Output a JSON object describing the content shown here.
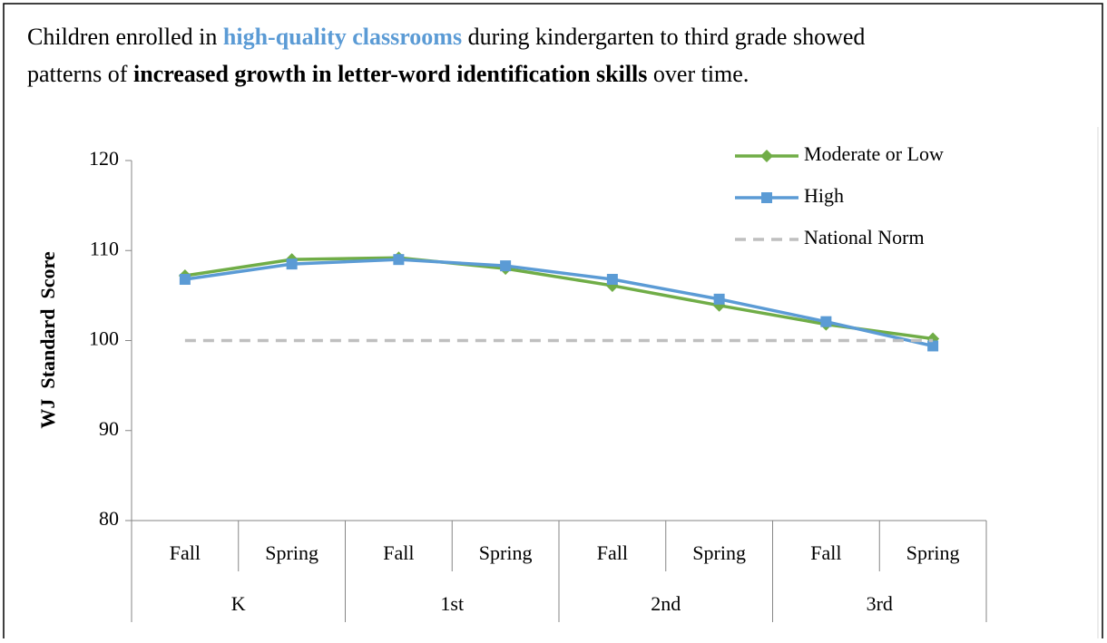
{
  "chart_data": {
    "type": "line",
    "title_lines": [
      [
        {
          "text": "Children enrolled in ",
          "style": "normal"
        },
        {
          "text": "high-quality classrooms",
          "style": "highlight"
        },
        {
          "text": " during kindergarten to third grade showed",
          "style": "normal"
        }
      ],
      [
        {
          "text": "patterns of ",
          "style": "normal"
        },
        {
          "text": "increased growth in letter-word identification skills",
          "style": "bold"
        },
        {
          "text": " over time.",
          "style": "normal"
        }
      ]
    ],
    "highlight_color": "#5b9bd5",
    "y_label": "WJ  Standard  Score",
    "categories": [
      "Fall",
      "Spring",
      "Fall",
      "Spring",
      "Fall",
      "Spring",
      "Fall",
      "Spring"
    ],
    "groups": [
      "K",
      "1st",
      "2nd",
      "3rd"
    ],
    "series": [
      {
        "name": "Moderate or Low",
        "color": "#70ad47",
        "marker": "diamond",
        "dash": false,
        "values": [
          107.2,
          109.0,
          109.2,
          108.0,
          106.1,
          103.9,
          101.8,
          100.2
        ]
      },
      {
        "name": "High",
        "color": "#5b9bd5",
        "marker": "square",
        "dash": false,
        "values": [
          106.8,
          108.5,
          109.0,
          108.3,
          106.8,
          104.6,
          102.1,
          99.4
        ]
      },
      {
        "name": "National Norm",
        "color": "#bfbfbf",
        "marker": "none",
        "dash": true,
        "values": [
          100,
          100,
          100,
          100,
          100,
          100,
          100,
          100
        ]
      }
    ],
    "ylim": [
      80,
      120
    ],
    "yticks": [
      80,
      90,
      100,
      110,
      120
    ],
    "grid": false,
    "legend": "top-right"
  }
}
